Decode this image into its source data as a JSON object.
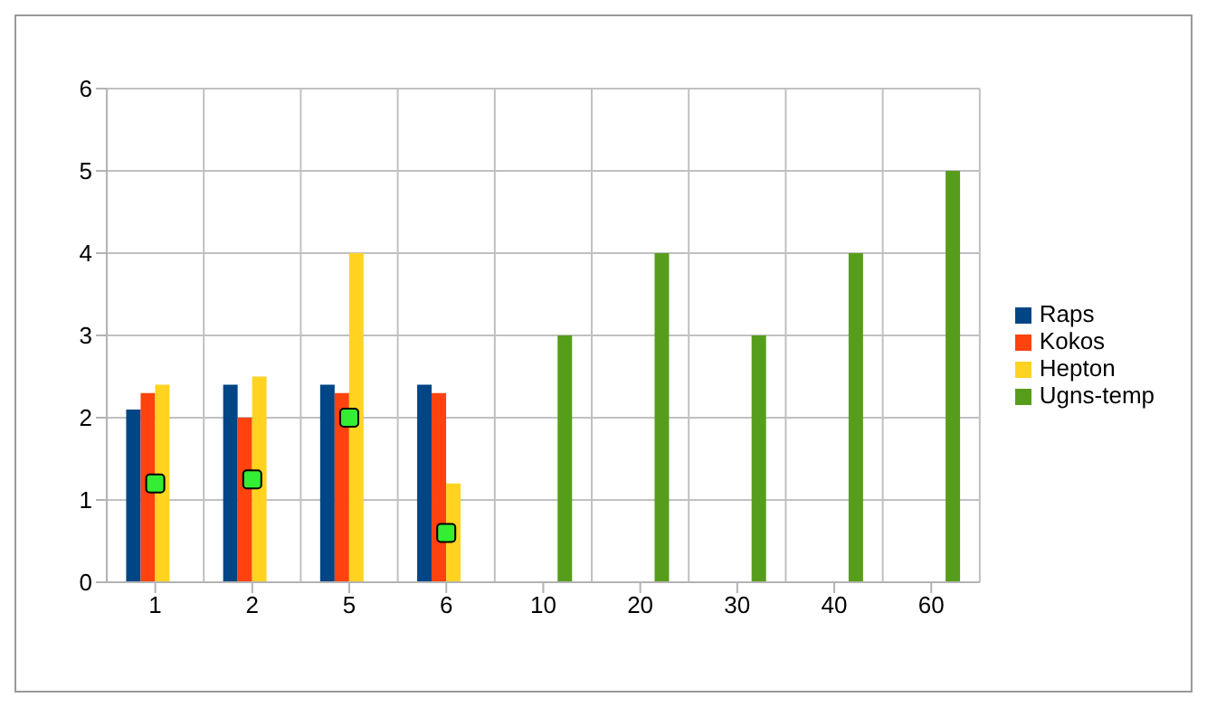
{
  "chart_data": {
    "type": "bar",
    "categories": [
      "1",
      "2",
      "5",
      "6",
      "10",
      "20",
      "30",
      "40",
      "60"
    ],
    "series": [
      {
        "name": "Raps",
        "color": "#004586",
        "values": [
          2.1,
          2.4,
          2.4,
          2.4,
          null,
          null,
          null,
          null,
          null
        ]
      },
      {
        "name": "Kokos",
        "color": "#ff420e",
        "values": [
          2.3,
          2.0,
          2.3,
          2.3,
          null,
          null,
          null,
          null,
          null
        ]
      },
      {
        "name": "Hepton",
        "color": "#ffd320",
        "values": [
          2.4,
          2.5,
          4.0,
          1.2,
          null,
          null,
          null,
          null,
          null
        ]
      },
      {
        "name": "Ugns-temp",
        "color": "#579d1c",
        "values": [
          null,
          null,
          null,
          null,
          3,
          4,
          3,
          4,
          5
        ]
      },
      {
        "type": "scatter",
        "color": "#33ee33",
        "values": [
          1.2,
          1.25,
          2.0,
          0.6,
          null,
          null,
          null,
          null,
          null
        ]
      }
    ],
    "ylim": [
      0,
      6
    ],
    "yticks": [
      0,
      1,
      2,
      3,
      4,
      5,
      6
    ],
    "grid": true,
    "legend": "right",
    "marker": "square"
  }
}
